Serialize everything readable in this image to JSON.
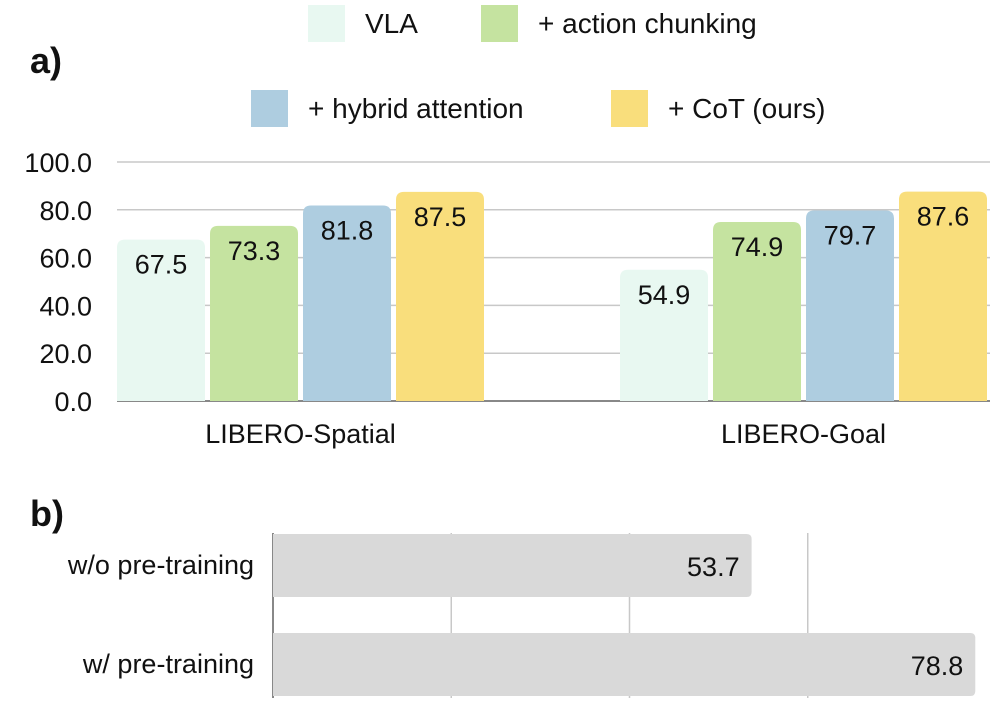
{
  "chart_data": [
    {
      "panel_label": "a)",
      "type": "bar",
      "orientation": "vertical",
      "categories": [
        "LIBERO-Spatial",
        "LIBERO-Goal"
      ],
      "series": [
        {
          "name": "VLA",
          "values": [
            67.5,
            54.9
          ],
          "color": "#e8f8f1"
        },
        {
          "name": "+ action chunking",
          "values": [
            73.3,
            74.9
          ],
          "color": "#c5e3a0"
        },
        {
          "name": "+ hybrid attention",
          "values": [
            81.8,
            79.7
          ],
          "color": "#aecde0"
        },
        {
          "name": "+ CoT (ours)",
          "values": [
            87.5,
            87.6
          ],
          "color": "#f9de7c"
        }
      ],
      "ylim": [
        0,
        100
      ],
      "yticks": [
        "0.0",
        "20.0",
        "40.0",
        "60.0",
        "80.0",
        "100.0"
      ],
      "grid": true,
      "legend_position": "top",
      "data_labels": true
    },
    {
      "panel_label": "b)",
      "type": "bar",
      "orientation": "horizontal",
      "categories": [
        "w/o pre-training",
        "w/ pre-training"
      ],
      "values": [
        53.7,
        78.8
      ],
      "color": "#d9d9d9",
      "xlim": [
        0,
        80
      ],
      "grid": true,
      "data_labels": true
    }
  ]
}
